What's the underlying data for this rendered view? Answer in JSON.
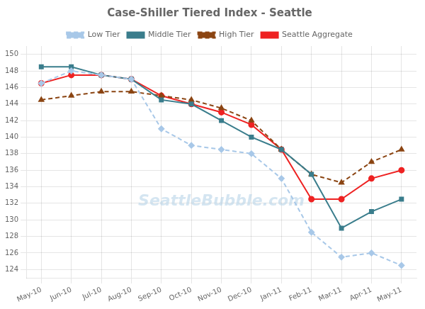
{
  "chart_data": {
    "type": "line",
    "title": "Case-Shiller Tiered Index - Seattle",
    "categories": [
      "May-10",
      "Jun-10",
      "Jul-10",
      "Aug-10",
      "Sep-10",
      "Oct-10",
      "Nov-10",
      "Dec-10",
      "Jan-11",
      "Feb-11",
      "Mar-11",
      "Apr-11",
      "May-11"
    ],
    "series": [
      {
        "name": "Low Tier",
        "color": "#A8C8E8",
        "line_style": "dashed",
        "marker": "diamond",
        "values": [
          146.5,
          148.0,
          147.5,
          147.0,
          141.0,
          139.0,
          138.5,
          138.0,
          135.0,
          128.5,
          125.5,
          126.0,
          124.5
        ]
      },
      {
        "name": "Middle Tier",
        "color": "#3A7D8C",
        "line_style": "solid",
        "marker": "square",
        "values": [
          148.5,
          148.5,
          147.5,
          147.0,
          144.5,
          144.0,
          142.0,
          140.0,
          138.5,
          135.5,
          129.0,
          131.0,
          132.5
        ]
      },
      {
        "name": "High Tier",
        "color": "#8B4513",
        "line_style": "dashed",
        "marker": "triangle",
        "values": [
          144.5,
          145.0,
          145.5,
          145.5,
          145.0,
          144.5,
          143.5,
          142.0,
          138.5,
          135.5,
          134.5,
          137.0,
          138.5
        ]
      },
      {
        "name": "Seattle Aggregate",
        "color": "#EE2222",
        "line_style": "solid",
        "marker": "circle",
        "values": [
          146.5,
          147.5,
          147.5,
          147.0,
          145.0,
          144.0,
          143.0,
          141.5,
          138.5,
          132.5,
          132.5,
          135.0,
          136.0
        ]
      }
    ],
    "ylim": [
      123,
      151
    ],
    "yticks": [
      124,
      126,
      128,
      130,
      132,
      134,
      136,
      138,
      140,
      142,
      144,
      146,
      148,
      150
    ],
    "grid": true,
    "legend": "top",
    "annotations": [
      "SeattleBubble.com"
    ]
  }
}
